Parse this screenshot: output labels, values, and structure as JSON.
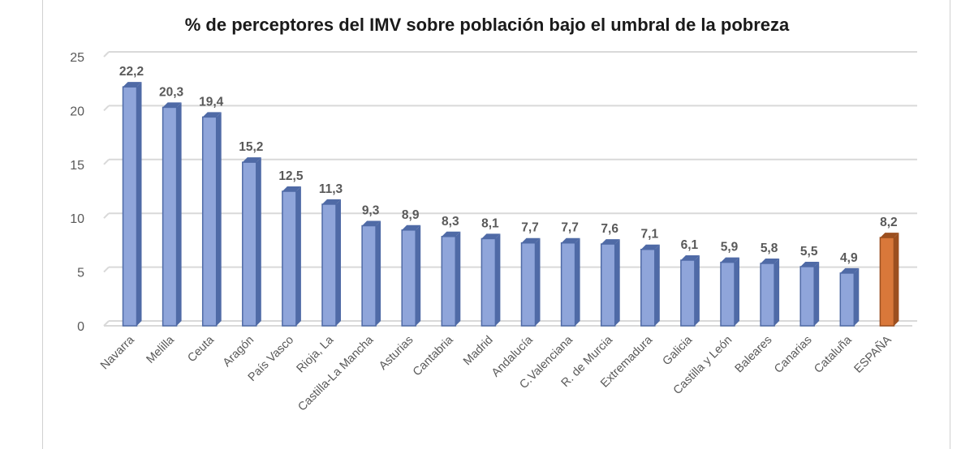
{
  "chart_data": {
    "type": "bar",
    "title": "% de perceptores del IMV sobre población bajo el umbral de la pobreza",
    "categories": [
      "Navarra",
      "Melilla",
      "Ceuta",
      "Aragón",
      "País Vasco",
      "Rioja, La",
      "Castilla-La Mancha",
      "Asturias",
      "Cantabria",
      "Madrid",
      "Andalucía",
      "C.Valenciana",
      "R. de Murcia",
      "Extremadura",
      "Galicia",
      "Castilla y León",
      "Baleares",
      "Canarias",
      "Cataluña",
      "ESPAÑA"
    ],
    "values": [
      22.2,
      20.3,
      19.4,
      15.2,
      12.5,
      11.3,
      9.3,
      8.9,
      8.3,
      8.1,
      7.7,
      7.7,
      7.6,
      7.1,
      6.1,
      5.9,
      5.8,
      5.5,
      4.9,
      8.2
    ],
    "data_labels": [
      "22,2",
      "20,3",
      "19,4",
      "15,2",
      "12,5",
      "11,3",
      "9,3",
      "8,9",
      "8,3",
      "8,1",
      "7,7",
      "7,7",
      "7,6",
      "7,1",
      "6,1",
      "5,9",
      "5,8",
      "5,5",
      "4,9",
      "8,2"
    ],
    "ylim": [
      0,
      25
    ],
    "yticks": [
      0,
      5,
      10,
      15,
      20,
      25
    ],
    "xlabel": "",
    "ylabel": "",
    "grid": true,
    "legend": "none",
    "colors": {
      "bar": "#8fa5da",
      "bar_dark": "#4f6aa6",
      "highlight": "#d9783a",
      "highlight_dark": "#9c4f1f",
      "highlight_category": "ESPAÑA",
      "grid": "#d9d9d9"
    }
  }
}
